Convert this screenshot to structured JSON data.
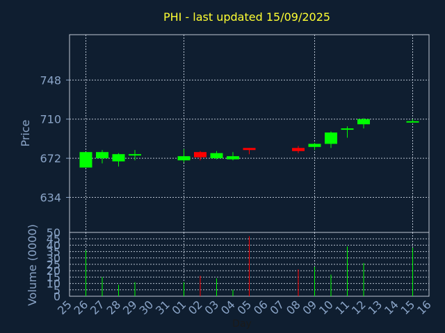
{
  "chart_data": {
    "type": "candlestick",
    "title": "PHI - last updated 15/09/2025",
    "xlabel": "Day",
    "ylabel": "Price",
    "volume_label": "Volume (0000)",
    "x_ticks": [
      "25",
      "26",
      "27",
      "28",
      "29",
      "30",
      "31",
      "01",
      "02",
      "03",
      "04",
      "05",
      "06",
      "07",
      "08",
      "09",
      "10",
      "11",
      "12",
      "13",
      "14",
      "15",
      "16"
    ],
    "price_ticks": [
      634,
      672,
      710,
      748
    ],
    "price_ylim": [
      600,
      792
    ],
    "volume_ticks": [
      0,
      5,
      10,
      15,
      20,
      25,
      30,
      35,
      40,
      45,
      50
    ],
    "volume_ylim": [
      0,
      50
    ],
    "grid": true,
    "colors": {
      "background": "#0f1e30",
      "up": "#00ff00",
      "down": "#ff0000",
      "title": "#ffff33",
      "axis_text": "#8ba5c8",
      "grid": "#b8c2d0"
    },
    "candles": [
      {
        "day": "26",
        "open": 663,
        "close": 678,
        "high": 678,
        "low": 663,
        "volume": 36
      },
      {
        "day": "27",
        "open": 672,
        "close": 678,
        "high": 680,
        "low": 667,
        "volume": 15
      },
      {
        "day": "28",
        "open": 669,
        "close": 676,
        "high": 677,
        "low": 664,
        "volume": 9
      },
      {
        "day": "29",
        "open": 675,
        "close": 676,
        "high": 680,
        "low": 670,
        "volume": 11
      },
      {
        "day": "01",
        "open": 670,
        "close": 674,
        "high": 681,
        "low": 668,
        "volume": 11
      },
      {
        "day": "02",
        "open": 678,
        "close": 673,
        "high": 679,
        "low": 670,
        "volume": 16
      },
      {
        "day": "03",
        "open": 672,
        "close": 677,
        "high": 679,
        "low": 671,
        "volume": 14
      },
      {
        "day": "04",
        "open": 671,
        "close": 674,
        "high": 678,
        "low": 670,
        "volume": 5
      },
      {
        "day": "05",
        "open": 682,
        "close": 680,
        "high": 682,
        "low": 676,
        "volume": 47
      },
      {
        "day": "08",
        "open": 682,
        "close": 679,
        "high": 684,
        "low": 677,
        "volume": 21
      },
      {
        "day": "09",
        "open": 683,
        "close": 686,
        "high": 687,
        "low": 680,
        "volume": 23
      },
      {
        "day": "10",
        "open": 686,
        "close": 697,
        "high": 698,
        "low": 682,
        "volume": 17
      },
      {
        "day": "11",
        "open": 700,
        "close": 701,
        "high": 703,
        "low": 692,
        "volume": 39
      },
      {
        "day": "12",
        "open": 705,
        "close": 710,
        "high": 711,
        "low": 701,
        "volume": 26
      },
      {
        "day": "15",
        "open": 707,
        "close": 708,
        "high": 710,
        "low": 707,
        "volume": 38
      }
    ]
  }
}
